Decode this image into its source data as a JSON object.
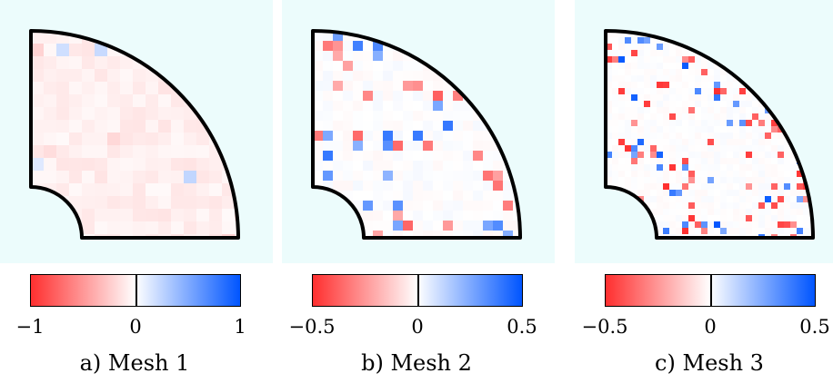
{
  "colors": {
    "background": "#ecfcfc",
    "negative_max": "#ff2f2f",
    "neutral": "#ffffff",
    "positive_max": "#0055ff",
    "boundary": "#000000"
  },
  "panels": [
    {
      "caption": "a) Mesh 1",
      "colorbar": {
        "min_label": "−1",
        "mid_label": "0",
        "max_label": "1",
        "range": [
          -1,
          1
        ]
      },
      "pattern": "mesh1"
    },
    {
      "caption": "b) Mesh 2",
      "colorbar": {
        "min_label": "−0.5",
        "mid_label": "0",
        "max_label": "0.5",
        "range": [
          -0.5,
          0.5
        ]
      },
      "pattern": "mesh2"
    },
    {
      "caption": "c) Mesh 3",
      "colorbar": {
        "min_label": "−0.5",
        "mid_label": "0",
        "max_label": "0.5",
        "range": [
          -0.5,
          0.5
        ]
      },
      "pattern": "mesh3"
    }
  ]
}
